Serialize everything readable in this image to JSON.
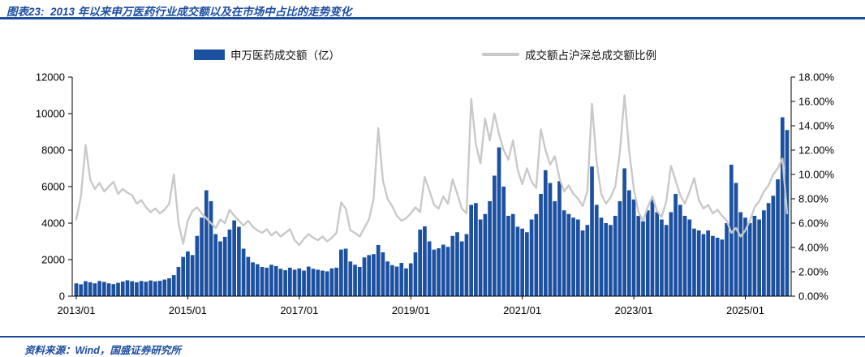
{
  "header": {
    "title": "图表23:  2013 年以来申万医药行业成交额以及在市场中占比的走势变化"
  },
  "legend": {
    "items": [
      {
        "label": "申万医药成交额（亿）",
        "type": "bar",
        "color": "#1c50a0"
      },
      {
        "label": "成交额占沪深总成交额比例",
        "type": "line",
        "color": "#c9c9c9"
      }
    ]
  },
  "footer": {
    "source": "资料来源：Wind，国盛证券研究所"
  },
  "chart_data": {
    "type": "combo-bar-line-dual-axis",
    "grid": false,
    "legend_position": "top",
    "left_axis": {
      "min": 0,
      "max": 12000,
      "step": 2000,
      "ticks": [
        "0",
        "2000",
        "4000",
        "6000",
        "8000",
        "10000",
        "12000"
      ]
    },
    "right_axis": {
      "min": 0,
      "max": 18,
      "step": 2,
      "ticks": [
        "0.00%",
        "2.00%",
        "4.00%",
        "6.00%",
        "8.00%",
        "10.00%",
        "12.00%",
        "14.00%",
        "16.00%",
        "18.00%"
      ]
    },
    "x_ticks": [
      "2013/01",
      "2015/01",
      "2017/01",
      "2019/01",
      "2021/01",
      "2023/01",
      "2025/01"
    ],
    "months": [
      "2013/01",
      "2013/02",
      "2013/03",
      "2013/04",
      "2013/05",
      "2013/06",
      "2013/07",
      "2013/08",
      "2013/09",
      "2013/10",
      "2013/11",
      "2013/12",
      "2014/01",
      "2014/02",
      "2014/03",
      "2014/04",
      "2014/05",
      "2014/06",
      "2014/07",
      "2014/08",
      "2014/09",
      "2014/10",
      "2014/11",
      "2014/12",
      "2015/01",
      "2015/02",
      "2015/03",
      "2015/04",
      "2015/05",
      "2015/06",
      "2015/07",
      "2015/08",
      "2015/09",
      "2015/10",
      "2015/11",
      "2015/12",
      "2016/01",
      "2016/02",
      "2016/03",
      "2016/04",
      "2016/05",
      "2016/06",
      "2016/07",
      "2016/08",
      "2016/09",
      "2016/10",
      "2016/11",
      "2016/12",
      "2017/01",
      "2017/02",
      "2017/03",
      "2017/04",
      "2017/05",
      "2017/06",
      "2017/07",
      "2017/08",
      "2017/09",
      "2017/10",
      "2017/11",
      "2017/12",
      "2018/01",
      "2018/02",
      "2018/03",
      "2018/04",
      "2018/05",
      "2018/06",
      "2018/07",
      "2018/08",
      "2018/09",
      "2018/10",
      "2018/11",
      "2018/12",
      "2019/01",
      "2019/02",
      "2019/03",
      "2019/04",
      "2019/05",
      "2019/06",
      "2019/07",
      "2019/08",
      "2019/09",
      "2019/10",
      "2019/11",
      "2019/12",
      "2020/01",
      "2020/02",
      "2020/03",
      "2020/04",
      "2020/05",
      "2020/06",
      "2020/07",
      "2020/08",
      "2020/09",
      "2020/10",
      "2020/11",
      "2020/12",
      "2021/01",
      "2021/02",
      "2021/03",
      "2021/04",
      "2021/05",
      "2021/06",
      "2021/07",
      "2021/08",
      "2021/09",
      "2021/10",
      "2021/11",
      "2021/12",
      "2022/01",
      "2022/02",
      "2022/03",
      "2022/04",
      "2022/05",
      "2022/06",
      "2022/07",
      "2022/08",
      "2022/09",
      "2022/10",
      "2022/11",
      "2022/12",
      "2023/01",
      "2023/02",
      "2023/03",
      "2023/04",
      "2023/05",
      "2023/06",
      "2023/07",
      "2023/08",
      "2023/09",
      "2023/10",
      "2023/11",
      "2023/12",
      "2024/01",
      "2024/02",
      "2024/03",
      "2024/04",
      "2024/05",
      "2024/06",
      "2024/07",
      "2024/08",
      "2024/09",
      "2024/10",
      "2024/11",
      "2024/12",
      "2025/01",
      "2025/02",
      "2025/03",
      "2025/04",
      "2025/05",
      "2025/06",
      "2025/07",
      "2025/08",
      "2025/09",
      "2025/10"
    ],
    "series": [
      {
        "name": "申万医药成交额（亿）",
        "axis": "left",
        "kind": "bar",
        "color": "#1c50a0",
        "values": [
          700,
          650,
          820,
          760,
          700,
          830,
          780,
          700,
          660,
          730,
          800,
          870,
          820,
          760,
          830,
          790,
          860,
          810,
          840,
          910,
          980,
          1150,
          1600,
          2150,
          2450,
          2250,
          3300,
          4300,
          5800,
          5200,
          3400,
          3000,
          3250,
          3650,
          4150,
          3800,
          2600,
          2150,
          1850,
          1750,
          1600,
          1560,
          1720,
          1650,
          1500,
          1420,
          1560,
          1450,
          1520,
          1400,
          1620,
          1500,
          1450,
          1400,
          1360,
          1520,
          1560,
          2550,
          2600,
          1900,
          1720,
          1600,
          2120,
          2250,
          2300,
          2800,
          2400,
          1900,
          1700,
          1620,
          1820,
          1520,
          1800,
          2400,
          3650,
          3820,
          3000,
          2550,
          2620,
          2820,
          2700,
          3300,
          3500,
          3000,
          3400,
          5000,
          5100,
          4200,
          4500,
          5200,
          6600,
          8150,
          6000,
          4400,
          4500,
          3800,
          3700,
          3500,
          4200,
          4500,
          5600,
          6900,
          6200,
          5200,
          6300,
          4700,
          4500,
          4300,
          4200,
          3600,
          3900,
          7100,
          5000,
          4300,
          4000,
          3900,
          4400,
          5200,
          7000,
          5800,
          5300,
          4400,
          4100,
          4700,
          5300,
          4600,
          4200,
          3900,
          4600,
          5600,
          5000,
          4400,
          4200,
          3700,
          3600,
          3400,
          3600,
          3300,
          3200,
          3100,
          4000,
          7200,
          6200,
          4600,
          4300,
          4000,
          4400,
          4200,
          4700,
          5100,
          5500,
          6400,
          9800,
          9100
        ]
      },
      {
        "name": "成交额占沪深总成交额比例",
        "axis": "right",
        "kind": "line",
        "color": "#c9c9c9",
        "values": [
          6.3,
          8.2,
          12.4,
          9.6,
          8.8,
          9.3,
          8.6,
          9.0,
          9.4,
          8.4,
          8.8,
          8.5,
          8.3,
          7.6,
          7.9,
          7.3,
          6.9,
          7.2,
          6.8,
          7.1,
          7.6,
          10.0,
          6.0,
          4.3,
          6.2,
          7.0,
          7.3,
          6.8,
          6.4,
          6.0,
          5.6,
          6.3,
          6.0,
          7.1,
          6.6,
          6.2,
          5.8,
          6.2,
          5.7,
          5.4,
          5.2,
          5.5,
          5.0,
          5.3,
          4.9,
          5.2,
          5.5,
          4.6,
          4.2,
          4.7,
          5.1,
          4.8,
          4.6,
          4.9,
          4.5,
          4.8,
          5.2,
          7.7,
          7.2,
          5.4,
          5.2,
          4.9,
          5.6,
          6.3,
          8.0,
          13.8,
          9.5,
          8.0,
          7.4,
          6.6,
          6.2,
          6.4,
          6.8,
          7.3,
          6.9,
          9.8,
          8.7,
          7.5,
          7.2,
          8.2,
          7.6,
          9.6,
          8.4,
          7.2,
          6.8,
          16.2,
          12.5,
          10.9,
          14.6,
          12.8,
          15.0,
          13.3,
          12.0,
          11.2,
          12.8,
          10.4,
          9.2,
          10.5,
          9.4,
          8.9,
          13.7,
          12.0,
          10.8,
          11.5,
          9.7,
          8.6,
          9.1,
          8.4,
          8.0,
          7.4,
          8.6,
          15.8,
          11.0,
          8.4,
          7.6,
          8.1,
          9.0,
          11.8,
          16.5,
          12.0,
          8.8,
          6.9,
          6.2,
          7.3,
          8.2,
          7.0,
          6.5,
          7.8,
          10.7,
          9.5,
          8.3,
          7.6,
          8.6,
          9.7,
          7.9,
          7.2,
          7.5,
          6.8,
          7.1,
          6.6,
          6.2,
          5.2,
          5.6,
          4.9,
          5.4,
          6.2,
          7.3,
          7.8,
          8.6,
          9.1,
          10.0,
          10.5,
          11.3,
          6.8
        ]
      }
    ]
  }
}
